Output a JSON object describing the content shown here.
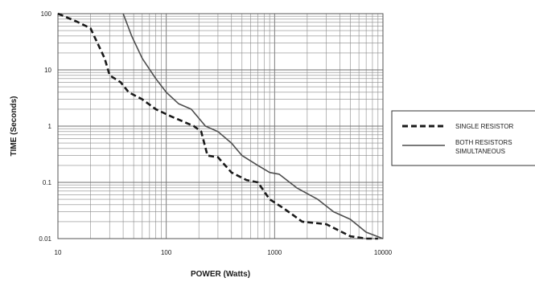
{
  "chart_data": {
    "type": "line",
    "title": "",
    "xlabel": "POWER (Watts)",
    "ylabel": "TIME (Seconds)",
    "xscale": "log",
    "yscale": "log",
    "xlim": [
      10,
      10000
    ],
    "ylim": [
      0.01,
      100
    ],
    "x_tick_labels": [
      "10",
      "100",
      "1000",
      "10000"
    ],
    "y_tick_labels": [
      "100",
      "10",
      "1",
      "0.1",
      "0.01"
    ],
    "grid": true,
    "legend_position": "right",
    "series": [
      {
        "name": "SINGLE RESISTOR",
        "style": "dashed",
        "color": "#1a1a1a",
        "points": [
          [
            10,
            100
          ],
          [
            15,
            72
          ],
          [
            20,
            55
          ],
          [
            27,
            16
          ],
          [
            30,
            8
          ],
          [
            38,
            6
          ],
          [
            45,
            4
          ],
          [
            60,
            3
          ],
          [
            80,
            2
          ],
          [
            110,
            1.5
          ],
          [
            180,
            1
          ],
          [
            210,
            0.8
          ],
          [
            240,
            0.3
          ],
          [
            300,
            0.28
          ],
          [
            400,
            0.15
          ],
          [
            550,
            0.11
          ],
          [
            700,
            0.1
          ],
          [
            900,
            0.05
          ],
          [
            1200,
            0.035
          ],
          [
            1800,
            0.02
          ],
          [
            3000,
            0.018
          ],
          [
            5000,
            0.011
          ],
          [
            7000,
            0.01
          ],
          [
            9000,
            0.01
          ]
        ]
      },
      {
        "name": "BOTH RESISTORS SIMULTANEOUS",
        "legend_lines": [
          "BOTH RESISTORS",
          "SIMULTANEOUS"
        ],
        "style": "solid",
        "color": "#4d4d4d",
        "points": [
          [
            40,
            100
          ],
          [
            48,
            40
          ],
          [
            60,
            16
          ],
          [
            80,
            7
          ],
          [
            100,
            4
          ],
          [
            130,
            2.5
          ],
          [
            170,
            2
          ],
          [
            230,
            1
          ],
          [
            300,
            0.8
          ],
          [
            400,
            0.5
          ],
          [
            500,
            0.3
          ],
          [
            700,
            0.2
          ],
          [
            900,
            0.15
          ],
          [
            1100,
            0.14
          ],
          [
            1600,
            0.08
          ],
          [
            2500,
            0.05
          ],
          [
            3500,
            0.03
          ],
          [
            5000,
            0.022
          ],
          [
            7000,
            0.013
          ],
          [
            10000,
            0.01
          ]
        ]
      }
    ]
  }
}
